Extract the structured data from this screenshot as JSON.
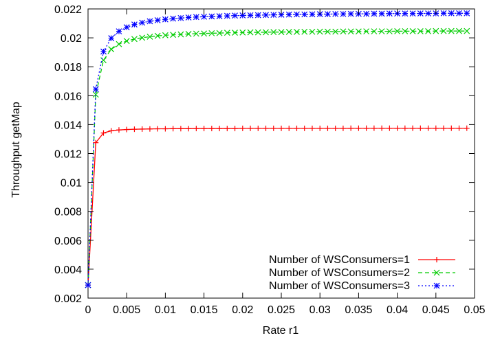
{
  "chart_data": {
    "type": "line",
    "title": "",
    "xlabel": "Rate r1",
    "ylabel": "Throughput getMap",
    "xlim": [
      0,
      0.05
    ],
    "ylim": [
      0.002,
      0.022
    ],
    "xticks": [
      0,
      0.005,
      0.01,
      0.015,
      0.02,
      0.025,
      0.03,
      0.035,
      0.04,
      0.045,
      0.05
    ],
    "xtick_labels": [
      "0",
      "0.005",
      "0.01",
      "0.015",
      "0.02",
      "0.025",
      "0.03",
      "0.035",
      "0.04",
      "0.045",
      "0.05"
    ],
    "yticks": [
      0.002,
      0.004,
      0.006,
      0.008,
      0.01,
      0.012,
      0.014,
      0.016,
      0.018,
      0.02,
      0.022
    ],
    "ytick_labels": [
      "0.002",
      "0.004",
      "0.006",
      "0.008",
      "0.01",
      "0.012",
      "0.014",
      "0.016",
      "0.018",
      "0.02",
      "0.022"
    ],
    "grid": false,
    "legend_position": "bottom-right",
    "x": [
      0,
      0.001,
      0.002,
      0.003,
      0.004,
      0.005,
      0.006,
      0.007,
      0.008,
      0.009,
      0.01,
      0.011,
      0.012,
      0.013,
      0.014,
      0.015,
      0.016,
      0.017,
      0.018,
      0.019,
      0.02,
      0.021,
      0.022,
      0.023,
      0.024,
      0.025,
      0.026,
      0.027,
      0.028,
      0.029,
      0.03,
      0.031,
      0.032,
      0.033,
      0.034,
      0.035,
      0.036,
      0.037,
      0.038,
      0.039,
      0.04,
      0.041,
      0.042,
      0.043,
      0.044,
      0.045,
      0.046,
      0.047,
      0.048,
      0.049
    ],
    "series": [
      {
        "name": "Number of WSConsumers=1",
        "color": "#ff0000",
        "marker": "plus",
        "dash": "solid",
        "values": [
          0.0029,
          0.01275,
          0.01342,
          0.01357,
          0.01363,
          0.01366,
          0.01368,
          0.01369,
          0.0137,
          0.01371,
          0.01371,
          0.01372,
          0.01372,
          0.01372,
          0.01373,
          0.01373,
          0.01373,
          0.01373,
          0.01373,
          0.01373,
          0.01374,
          0.01374,
          0.01374,
          0.01374,
          0.01374,
          0.01374,
          0.01374,
          0.01374,
          0.01374,
          0.01374,
          0.01374,
          0.01374,
          0.01374,
          0.01374,
          0.01375,
          0.01375,
          0.01375,
          0.01375,
          0.01375,
          0.01375,
          0.01375,
          0.01375,
          0.01375,
          0.01375,
          0.01375,
          0.01375,
          0.01375,
          0.01375,
          0.01375,
          0.01375
        ]
      },
      {
        "name": "Number of WSConsumers=2",
        "color": "#00cc00",
        "marker": "x",
        "dash": "dashed",
        "values": [
          0.0029,
          0.01608,
          0.01845,
          0.01921,
          0.01957,
          0.01978,
          0.01992,
          0.02001,
          0.02008,
          0.02014,
          0.02018,
          0.02021,
          0.02024,
          0.02027,
          0.02029,
          0.0203,
          0.02032,
          0.02033,
          0.02035,
          0.02036,
          0.02037,
          0.02038,
          0.02038,
          0.02039,
          0.0204,
          0.0204,
          0.02041,
          0.02041,
          0.02042,
          0.02042,
          0.02043,
          0.02043,
          0.02043,
          0.02044,
          0.02044,
          0.02044,
          0.02045,
          0.02045,
          0.02045,
          0.02045,
          0.02046,
          0.02046,
          0.02046,
          0.02046,
          0.02046,
          0.02047,
          0.02047,
          0.02047,
          0.02047,
          0.02047
        ]
      },
      {
        "name": "Number of WSConsumers=3",
        "color": "#0000ff",
        "marker": "star",
        "dash": "dotted",
        "values": [
          0.0029,
          0.01645,
          0.01905,
          0.01998,
          0.02045,
          0.02073,
          0.02092,
          0.02105,
          0.02115,
          0.02122,
          0.02128,
          0.02133,
          0.02137,
          0.02141,
          0.02144,
          0.02146,
          0.02148,
          0.0215,
          0.02152,
          0.02154,
          0.02155,
          0.02156,
          0.02157,
          0.02158,
          0.02159,
          0.0216,
          0.02161,
          0.02162,
          0.02162,
          0.02163,
          0.02164,
          0.02164,
          0.02165,
          0.02165,
          0.02166,
          0.02166,
          0.02166,
          0.02167,
          0.02167,
          0.02168,
          0.02168,
          0.02168,
          0.02168,
          0.02169,
          0.02169,
          0.02169,
          0.0217,
          0.0217,
          0.0217,
          0.0217
        ]
      }
    ]
  }
}
